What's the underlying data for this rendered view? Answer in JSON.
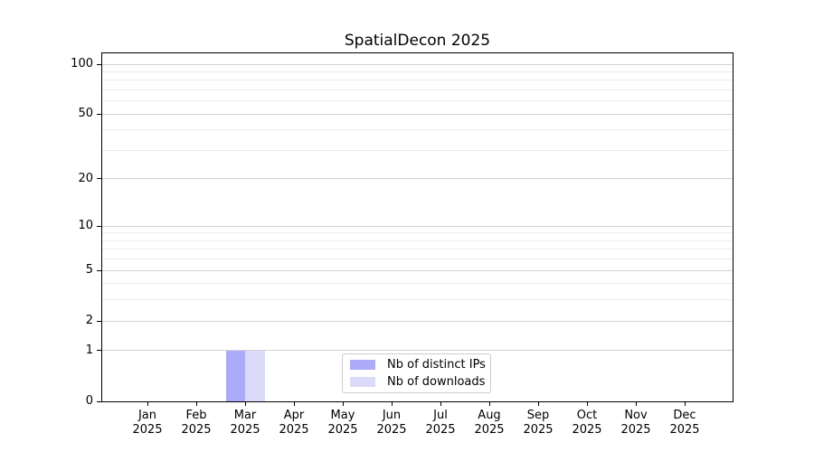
{
  "chart_data": {
    "type": "bar",
    "title": "SpatialDecon 2025",
    "categories": [
      "Jan 2025",
      "Feb 2025",
      "Mar 2025",
      "Apr 2025",
      "May 2025",
      "Jun 2025",
      "Jul 2025",
      "Aug 2025",
      "Sep 2025",
      "Oct 2025",
      "Nov 2025",
      "Dec 2025"
    ],
    "series": [
      {
        "name": "Nb of distinct IPs",
        "color": "#ababf8",
        "values": [
          0,
          0,
          1,
          0,
          0,
          0,
          0,
          0,
          0,
          0,
          0,
          0
        ]
      },
      {
        "name": "Nb of downloads",
        "color": "#dbdbf9",
        "values": [
          0,
          0,
          1,
          0,
          0,
          0,
          0,
          0,
          0,
          0,
          0,
          0
        ]
      }
    ],
    "yscale": "log10(1+x)",
    "ylim": [
      0,
      100
    ],
    "y_major_ticks": [
      0,
      1,
      2,
      5,
      10,
      20,
      50,
      100
    ],
    "y_minor_ticks": [
      3,
      4,
      6,
      7,
      8,
      9,
      30,
      40,
      60,
      70,
      80,
      90
    ],
    "xlabel": "",
    "ylabel": "",
    "grid": true,
    "legend_position": "lower center inside plot"
  },
  "legend": {
    "items": [
      {
        "label": "Nb of distinct IPs",
        "color": "#ababf8"
      },
      {
        "label": "Nb of downloads",
        "color": "#dbdbf9"
      }
    ]
  },
  "colors": {
    "background": "#ffffff",
    "axis": "#000000",
    "grid_major": "#d2d2d2",
    "grid_minor": "#ececec",
    "text": "#000000",
    "legend_border": "#cccccc",
    "legend_bg": "#ffffff"
  }
}
